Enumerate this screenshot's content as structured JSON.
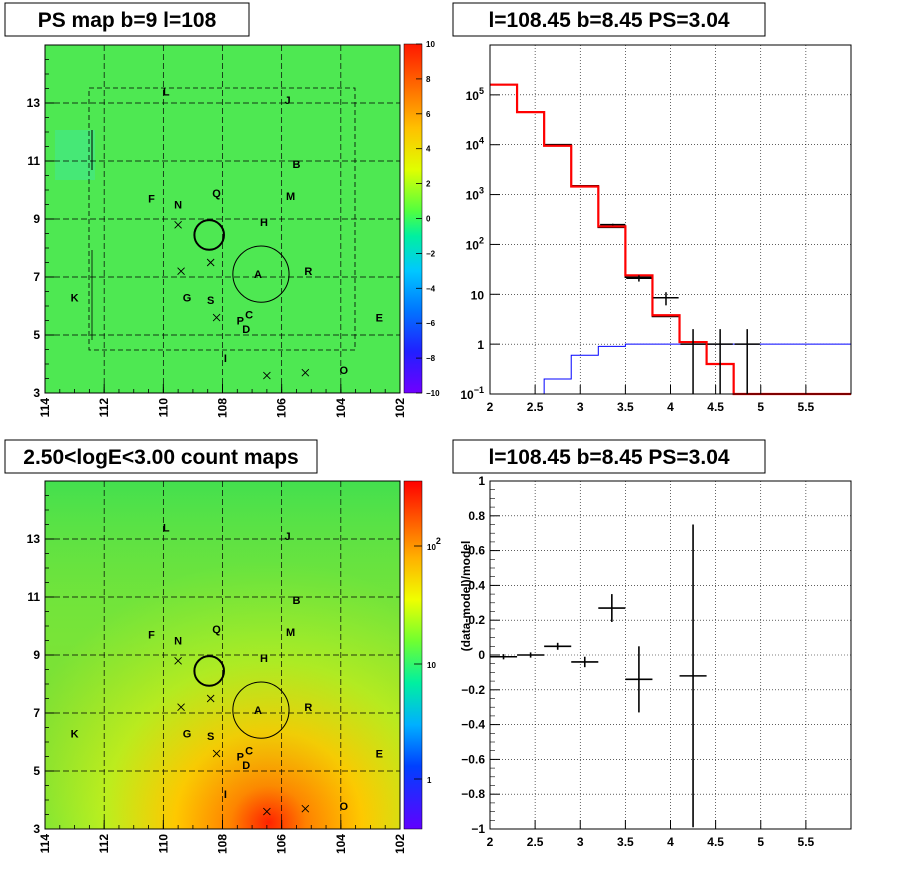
{
  "titles": {
    "p1": "PS map b=9 l=108",
    "p2": "l=108.45 b=8.45 PS=3.04",
    "p3": "2.50<logE<3.00 count maps",
    "p4": "l=108.45 b=8.45 PS=3.04"
  },
  "colors": {
    "data": "#000000",
    "model": "#ff0000",
    "blue_model": "#0000ff",
    "map_green": "#4ee852",
    "grid": "#000000"
  },
  "chart_data": [
    {
      "id": "ps_map",
      "type": "heatmap",
      "title": "PS map b=9 l=108",
      "xlim": [
        114,
        102
      ],
      "ylim": [
        3,
        15
      ],
      "x_ticks": [
        "114",
        "112",
        "110",
        "108",
        "106",
        "104",
        "102"
      ],
      "y_ticks": [
        "3",
        "5",
        "7",
        "9",
        "11",
        "13"
      ],
      "colorbar": {
        "range": [
          -10,
          10
        ],
        "ticks": [
          "10",
          "8",
          "6",
          "4",
          "2",
          "0",
          "−2",
          "−4",
          "−6",
          "−8",
          "−10"
        ]
      },
      "sources": [
        {
          "label": "L",
          "l": 109.9,
          "b": 13.4
        },
        {
          "label": "J",
          "l": 105.8,
          "b": 13.1
        },
        {
          "label": "B",
          "l": 105.5,
          "b": 10.9
        },
        {
          "label": "F",
          "l": 110.4,
          "b": 9.7
        },
        {
          "label": "N",
          "l": 109.5,
          "b": 9.5
        },
        {
          "label": "Q",
          "l": 108.2,
          "b": 9.9
        },
        {
          "label": "M",
          "l": 105.7,
          "b": 9.8
        },
        {
          "label": "H",
          "l": 106.6,
          "b": 8.9
        },
        {
          "label": "A",
          "l": 106.8,
          "b": 7.1
        },
        {
          "label": "R",
          "l": 105.1,
          "b": 7.2
        },
        {
          "label": "K",
          "l": 113.0,
          "b": 6.3
        },
        {
          "label": "G",
          "l": 109.2,
          "b": 6.3
        },
        {
          "label": "S",
          "l": 108.4,
          "b": 6.2
        },
        {
          "label": "P",
          "l": 107.4,
          "b": 5.5
        },
        {
          "label": "C",
          "l": 107.1,
          "b": 5.7
        },
        {
          "label": "D",
          "l": 107.2,
          "b": 5.2
        },
        {
          "label": "E",
          "l": 102.7,
          "b": 5.6
        },
        {
          "label": "I",
          "l": 107.9,
          "b": 4.2
        },
        {
          "label": "O",
          "l": 103.9,
          "b": 3.8
        }
      ],
      "crosses": [
        {
          "l": 109.5,
          "b": 8.8
        },
        {
          "l": 109.4,
          "b": 7.2
        },
        {
          "l": 108.4,
          "b": 7.5
        },
        {
          "l": 108.2,
          "b": 5.6
        },
        {
          "l": 106.5,
          "b": 3.6
        },
        {
          "l": 105.2,
          "b": 3.7
        }
      ],
      "circles": [
        {
          "l": 108.45,
          "b": 8.45,
          "r": 0.5
        },
        {
          "l": 106.7,
          "b": 7.1,
          "r": 0.95
        }
      ]
    },
    {
      "id": "spectrum",
      "type": "line",
      "title": "l=108.45 b=8.45 PS=3.04",
      "xlim": [
        2,
        6
      ],
      "ylim": [
        0.1,
        1000000
      ],
      "yscale": "log",
      "grid": true,
      "x_ticks": [
        "2",
        "2.5",
        "3",
        "3.5",
        "4",
        "4.5",
        "5",
        "5.5"
      ],
      "y_ticks": [
        {
          "base": "10",
          "exp": "5",
          "v": 100000
        },
        {
          "base": "10",
          "exp": "4",
          "v": 10000
        },
        {
          "base": "10",
          "exp": "3",
          "v": 1000
        },
        {
          "base": "10",
          "exp": "2",
          "v": 100
        },
        {
          "base": "10",
          "exp": "",
          "v": 10
        },
        {
          "base": "1",
          "exp": "",
          "v": 1
        },
        {
          "base": "10",
          "exp": "−1",
          "v": 0.1
        }
      ],
      "bin_edges": [
        2.0,
        2.3,
        2.6,
        2.9,
        3.2,
        3.5,
        3.8,
        4.1,
        4.4,
        4.7,
        5.0,
        6.0
      ],
      "model_red": [
        160000,
        45000,
        9500,
        1450,
        230,
        24,
        3.8,
        1.1,
        0.4,
        0.1,
        0.1
      ],
      "model_black": [
        160000,
        45000,
        10000,
        1500,
        220,
        22,
        3.6,
        1.1,
        0.4,
        0.1,
        0.1
      ],
      "model_blue": [
        0.05,
        0.05,
        0.2,
        0.6,
        0.9,
        1,
        1,
        1,
        1,
        1,
        1
      ],
      "data_points": [
        {
          "x": 3.36,
          "y": 250,
          "ylo": 240,
          "yhi": 260,
          "xerr": 0.14
        },
        {
          "x": 3.65,
          "y": 21,
          "ylo": 18,
          "yhi": 24,
          "xerr": 0.14
        },
        {
          "x": 3.95,
          "y": 8.5,
          "ylo": 6,
          "yhi": 11,
          "xerr": 0.14
        },
        {
          "x": 4.25,
          "y": 1,
          "ylo": 0.1,
          "yhi": 2,
          "xerr": 0.14
        },
        {
          "x": 4.55,
          "y": 1,
          "ylo": 0.1,
          "yhi": 2,
          "xerr": 0.14
        },
        {
          "x": 4.85,
          "y": 1,
          "ylo": 0.1,
          "yhi": 2,
          "xerr": 0.14
        }
      ]
    },
    {
      "id": "count_map",
      "type": "heatmap",
      "title": "2.50<logE<3.00 count maps",
      "xlim": [
        114,
        102
      ],
      "ylim": [
        3,
        15
      ],
      "x_ticks": [
        "114",
        "112",
        "110",
        "108",
        "106",
        "104",
        "102"
      ],
      "y_ticks": [
        "3",
        "5",
        "7",
        "9",
        "11",
        "13"
      ],
      "colorbar": {
        "scale": "log",
        "ticks": [
          {
            "base": "10",
            "exp": "2"
          },
          {
            "base": "10",
            "exp": ""
          },
          {
            "base": "1",
            "exp": ""
          }
        ]
      }
    },
    {
      "id": "residuals",
      "type": "scatter",
      "title": "l=108.45 b=8.45 PS=3.04",
      "ylabel": "(data-model)/model",
      "xlim": [
        2,
        6
      ],
      "ylim": [
        -1,
        1
      ],
      "grid": true,
      "x_ticks": [
        "2",
        "2.5",
        "3",
        "3.5",
        "4",
        "4.5",
        "5",
        "5.5"
      ],
      "y_ticks": [
        "1",
        "0.8",
        "0.6",
        "0.4",
        "0.2",
        "0",
        "−0.2",
        "−0.4",
        "−0.6",
        "−0.8",
        "−1"
      ],
      "points": [
        {
          "x": 2.15,
          "y": -0.01,
          "yerr": 0.015,
          "xerr": 0.15
        },
        {
          "x": 2.45,
          "y": 0.0,
          "yerr": 0.015,
          "xerr": 0.15
        },
        {
          "x": 2.75,
          "y": 0.05,
          "yerr": 0.02,
          "xerr": 0.15
        },
        {
          "x": 3.05,
          "y": -0.04,
          "yerr": 0.03,
          "xerr": 0.15
        },
        {
          "x": 3.35,
          "y": 0.27,
          "yerr": 0.08,
          "xerr": 0.15
        },
        {
          "x": 3.65,
          "y": -0.14,
          "yerr": 0.19,
          "xerr": 0.15
        },
        {
          "x": 4.25,
          "y": -0.12,
          "yerr": 0.87,
          "xerr": 0.15
        }
      ]
    }
  ]
}
